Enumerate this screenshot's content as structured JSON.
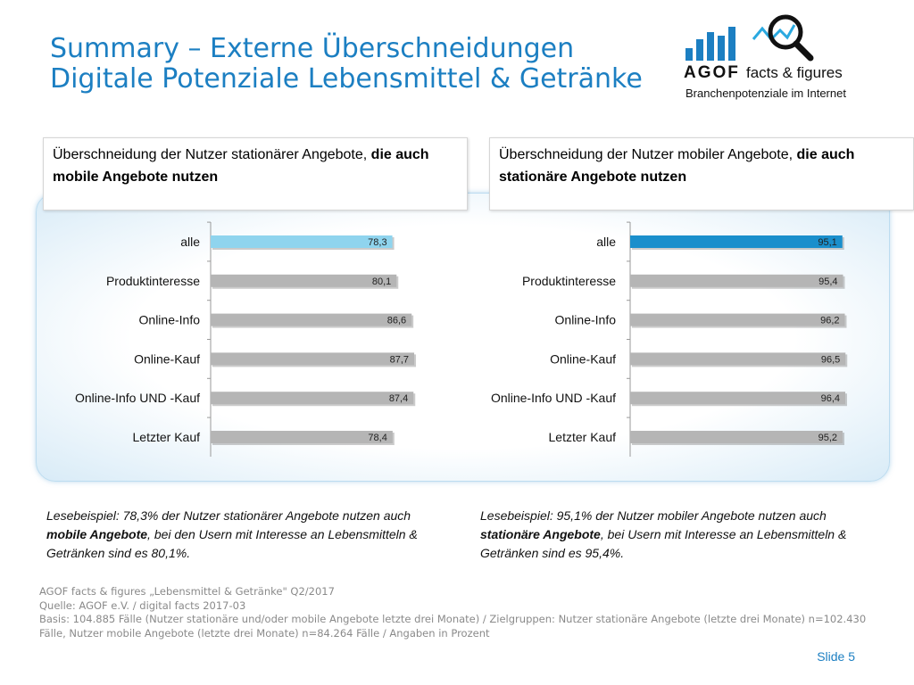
{
  "title": {
    "line1": "Summary – Externe Überschneidungen",
    "line2": "Digitale Potenziale Lebensmittel & Getränke"
  },
  "logo": {
    "brand": "AGOF",
    "tagline": "facts & figures",
    "subline": "Branchenpotenziale im Internet",
    "icons": [
      "bar-chart-icon",
      "magnifier-icon"
    ]
  },
  "boxes": {
    "left": {
      "text_plain": "Überschneidung der Nutzer stationärer Angebote, ",
      "text_bold": "die auch mobile Angebote nutzen"
    },
    "right": {
      "text_plain": "Überschneidung der Nutzer mobiler Angebote, ",
      "text_bold": "die auch stationäre Angebote nutzen"
    }
  },
  "chart_data": [
    {
      "type": "bar",
      "orientation": "horizontal",
      "categories": [
        "alle",
        "Produktinteresse",
        "Online-Info",
        "Online-Kauf",
        "Online-Info UND -Kauf",
        "Letzter Kauf"
      ],
      "values": [
        78.3,
        80.1,
        86.6,
        87.7,
        87.4,
        78.4
      ],
      "value_labels": [
        "78,3",
        "80,1",
        "86,6",
        "87,7",
        "87,4",
        "78,4"
      ],
      "xlim": [
        0,
        100
      ],
      "highlight_index": 0,
      "colors": {
        "highlight": "#8fd4ee",
        "bar": "#b5b5b5"
      }
    },
    {
      "type": "bar",
      "orientation": "horizontal",
      "categories": [
        "alle",
        "Produktinteresse",
        "Online-Info",
        "Online-Kauf",
        "Online-Info UND -Kauf",
        "Letzter Kauf"
      ],
      "values": [
        95.1,
        95.4,
        96.2,
        96.5,
        96.4,
        95.2
      ],
      "value_labels": [
        "95,1",
        "95,4",
        "96,2",
        "96,5",
        "96,4",
        "95,2"
      ],
      "xlim": [
        0,
        100
      ],
      "highlight_index": 0,
      "colors": {
        "highlight": "#1a8fcc",
        "bar": "#b5b5b5"
      }
    }
  ],
  "notes": {
    "left": {
      "p1": "Lesebeispiel: 78,3% der Nutzer stationärer Angebote nutzen auch ",
      "b1": "mobile Angebote",
      "p2": ", bei den Usern mit Interesse an Lebensmitteln & Getränken sind es 80,1%."
    },
    "right": {
      "p1": "Lesebeispiel: 95,1% der Nutzer mobiler Angebote nutzen auch ",
      "b1": "stationäre Angebote",
      "p2": ", bei Usern mit Interesse an Lebensmitteln & Getränken sind es 95,4%."
    }
  },
  "footer": {
    "line1": "AGOF facts & figures „Lebensmittel & Getränke\" Q2/2017",
    "line2": "Quelle: AGOF e.V. / digital facts 2017-03",
    "line3": "Basis: 104.885 Fälle (Nutzer stationäre und/oder mobile Angebote letzte drei Monate) / Zielgruppen: Nutzer stationäre Angebote (letzte drei Monate) n=102.430 Fälle, Nutzer mobile Angebote (letzte drei Monate) n=84.264 Fälle / Angaben in Prozent"
  },
  "slide_label": "Slide 5",
  "colors": {
    "accent": "#1c7fc2"
  }
}
